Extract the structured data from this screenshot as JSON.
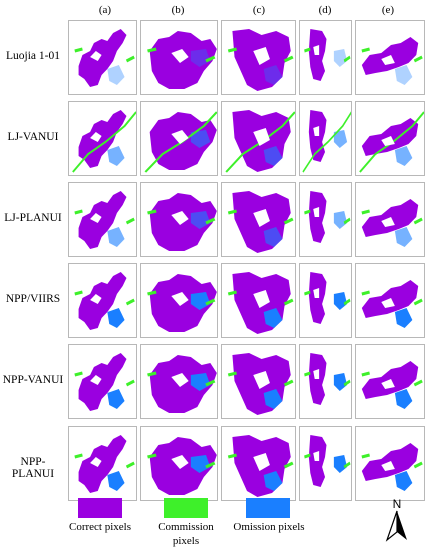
{
  "columns": [
    "(a)",
    "(b)",
    "(c)",
    "(d)",
    "(e)"
  ],
  "rows": [
    "Luojia 1-01",
    "LJ-VANUI",
    "LJ-PLANUI",
    "NPP/VIIRS",
    "NPP-VANUI",
    "NPP-PLANUI"
  ],
  "colors": {
    "correct": "#9a00e0",
    "commission": "#3ef02a",
    "omission": "#1a7fff"
  },
  "legend": {
    "correct": "Correct pixels",
    "commission_line1": "Commission",
    "commission_line2": "pixels",
    "omission": "Omission pixels"
  },
  "north_label": "N"
}
